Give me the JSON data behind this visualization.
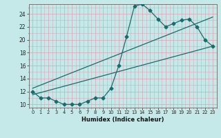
{
  "xlabel": "Humidex (Indice chaleur)",
  "bg_color": "#c5e8e8",
  "grid_color_major": "#daaaba",
  "grid_color_minor": "#daaaba",
  "line_color": "#1a6b6b",
  "xlim": [
    -0.5,
    23.5
  ],
  "ylim": [
    9.5,
    25.5
  ],
  "xticks": [
    0,
    1,
    2,
    3,
    4,
    5,
    6,
    7,
    8,
    9,
    10,
    11,
    12,
    13,
    14,
    15,
    16,
    17,
    18,
    19,
    20,
    21,
    22,
    23
  ],
  "yticks": [
    10,
    12,
    14,
    16,
    18,
    20,
    22,
    24
  ],
  "line1_x": [
    0,
    1,
    2,
    3,
    4,
    5,
    6,
    7,
    8,
    9,
    10,
    11,
    12,
    13,
    14,
    15,
    16,
    17,
    18,
    19,
    20,
    21,
    22,
    23
  ],
  "line1_y": [
    12,
    11,
    11,
    10.5,
    10,
    10,
    10,
    10.5,
    11,
    11,
    12.5,
    16,
    20.5,
    25.2,
    25.5,
    24.5,
    23.2,
    22,
    22.5,
    23,
    23.2,
    22,
    20,
    19
  ],
  "line2_x": [
    0,
    23
  ],
  "line2_y": [
    11.5,
    19
  ],
  "line3_x": [
    0,
    23
  ],
  "line3_y": [
    12.5,
    23.5
  ],
  "markersize": 2.5
}
